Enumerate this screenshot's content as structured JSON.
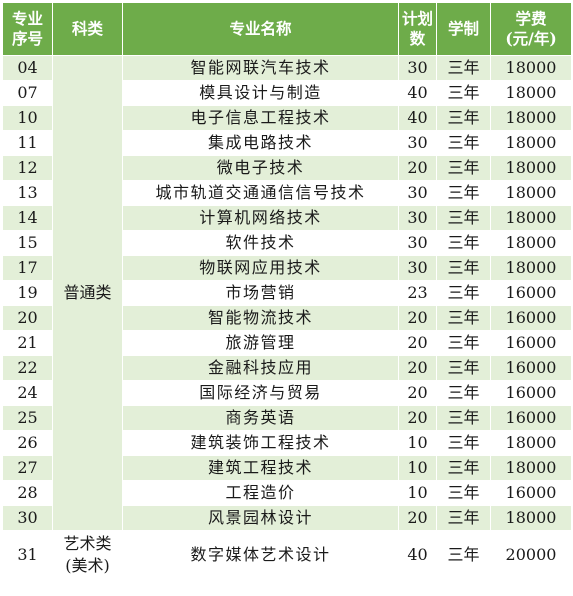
{
  "header": {
    "id_line1": "专业",
    "id_line2": "序号",
    "category": "科类",
    "name": "专业名称",
    "plan_line1": "计划",
    "plan_line2": "数",
    "duration": "学制",
    "fee_line1": "学费",
    "fee_line2": "(元/年)"
  },
  "group1": {
    "category": "普通类",
    "rows": [
      {
        "id": "04",
        "name": "智能网联汽车技术",
        "plan": "30",
        "duration": "三年",
        "fee": "18000"
      },
      {
        "id": "07",
        "name": "模具设计与制造",
        "plan": "40",
        "duration": "三年",
        "fee": "18000"
      },
      {
        "id": "10",
        "name": "电子信息工程技术",
        "plan": "40",
        "duration": "三年",
        "fee": "18000"
      },
      {
        "id": "11",
        "name": "集成电路技术",
        "plan": "30",
        "duration": "三年",
        "fee": "18000"
      },
      {
        "id": "12",
        "name": "微电子技术",
        "plan": "20",
        "duration": "三年",
        "fee": "18000"
      },
      {
        "id": "13",
        "name": "城市轨道交通通信信号技术",
        "plan": "30",
        "duration": "三年",
        "fee": "18000"
      },
      {
        "id": "14",
        "name": "计算机网络技术",
        "plan": "30",
        "duration": "三年",
        "fee": "18000"
      },
      {
        "id": "15",
        "name": "软件技术",
        "plan": "30",
        "duration": "三年",
        "fee": "18000"
      },
      {
        "id": "17",
        "name": "物联网应用技术",
        "plan": "30",
        "duration": "三年",
        "fee": "18000"
      },
      {
        "id": "19",
        "name": "市场营销",
        "plan": "23",
        "duration": "三年",
        "fee": "16000"
      },
      {
        "id": "20",
        "name": "智能物流技术",
        "plan": "20",
        "duration": "三年",
        "fee": "16000"
      },
      {
        "id": "21",
        "name": "旅游管理",
        "plan": "20",
        "duration": "三年",
        "fee": "16000"
      },
      {
        "id": "22",
        "name": "金融科技应用",
        "plan": "20",
        "duration": "三年",
        "fee": "16000"
      },
      {
        "id": "24",
        "name": "国际经济与贸易",
        "plan": "20",
        "duration": "三年",
        "fee": "16000"
      },
      {
        "id": "25",
        "name": "商务英语",
        "plan": "20",
        "duration": "三年",
        "fee": "16000"
      },
      {
        "id": "26",
        "name": "建筑装饰工程技术",
        "plan": "10",
        "duration": "三年",
        "fee": "18000"
      },
      {
        "id": "27",
        "name": "建筑工程技术",
        "plan": "10",
        "duration": "三年",
        "fee": "18000"
      },
      {
        "id": "28",
        "name": "工程造价",
        "plan": "10",
        "duration": "三年",
        "fee": "16000"
      },
      {
        "id": "30",
        "name": "风景园林设计",
        "plan": "20",
        "duration": "三年",
        "fee": "18000"
      }
    ]
  },
  "group2": {
    "category_line1": "艺术类",
    "category_line2": "(美术)",
    "rows": [
      {
        "id": "31",
        "name": "数字媒体艺术设计",
        "plan": "40",
        "duration": "三年",
        "fee": "20000"
      }
    ]
  },
  "colors": {
    "header_bg": "#6eac4a",
    "row_alt_bg": "#e3efd8",
    "row_bg": "#ffffff"
  }
}
